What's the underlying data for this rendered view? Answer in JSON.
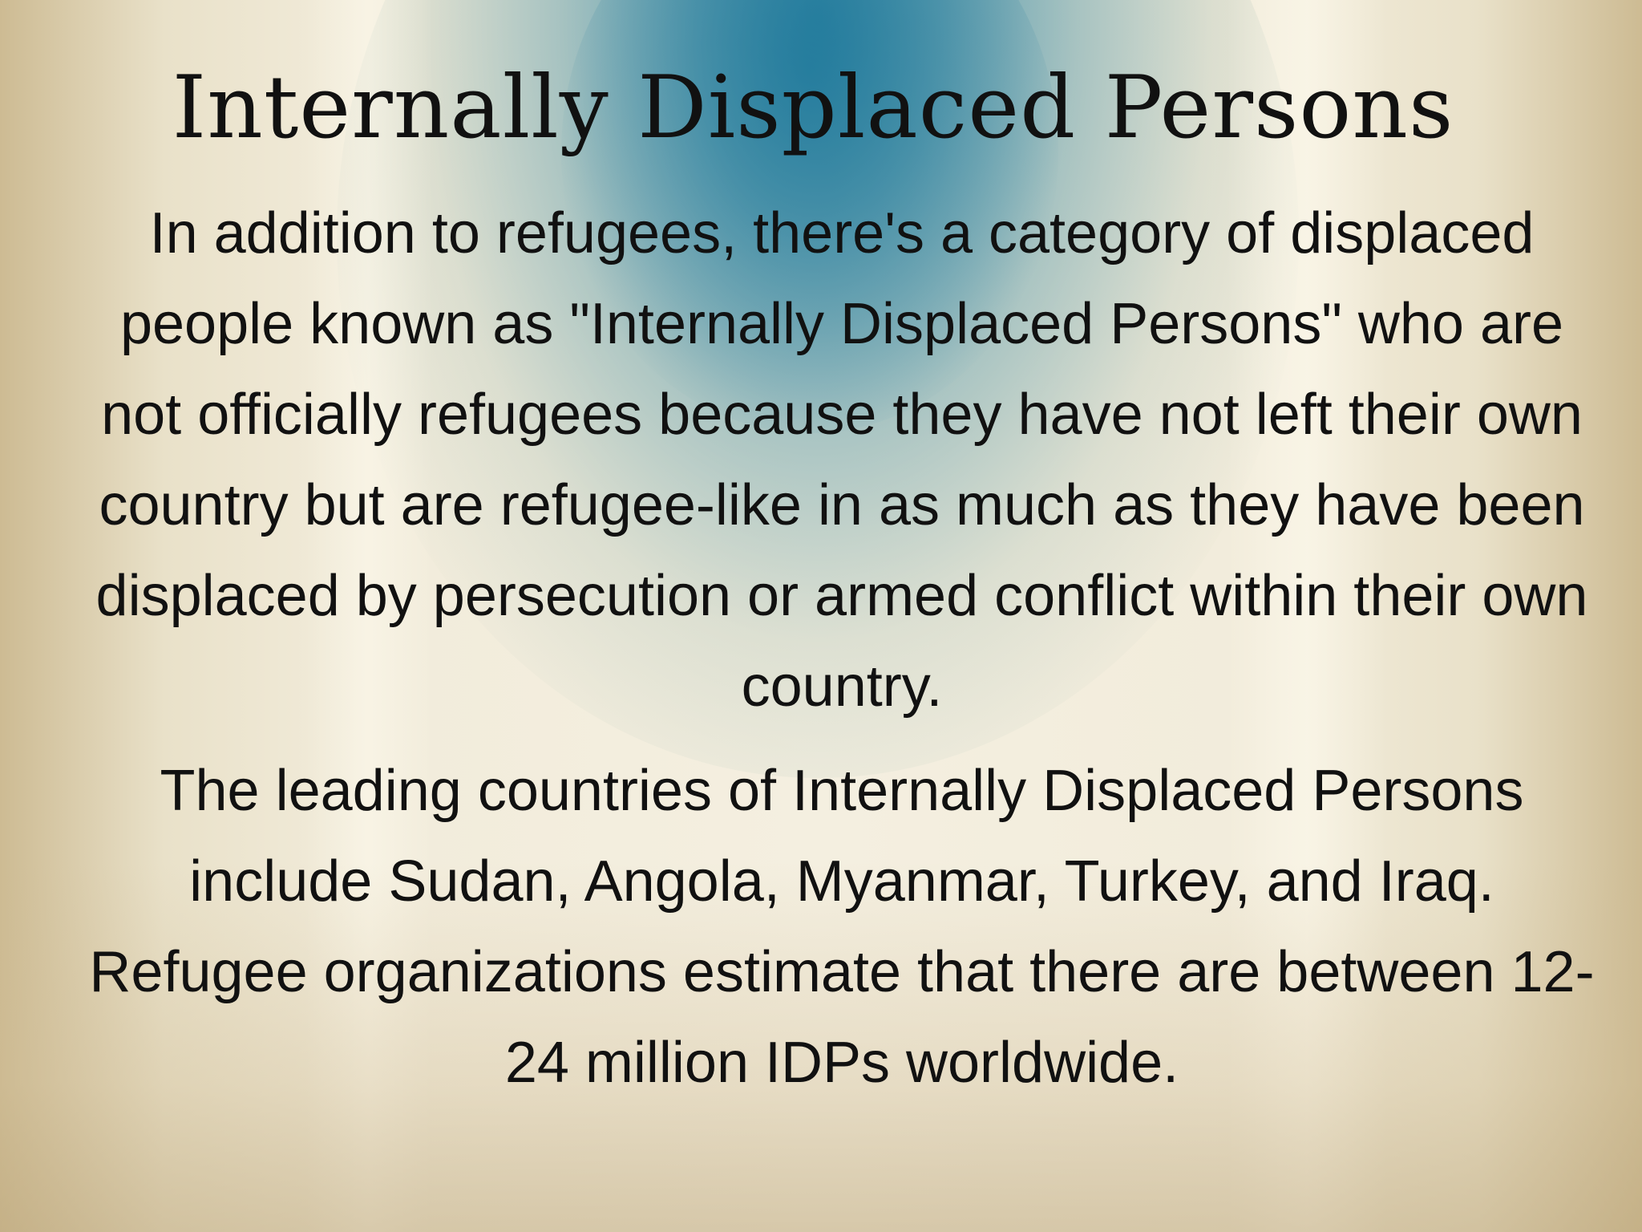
{
  "slide": {
    "title": "Internally Displaced Persons",
    "paragraph_1": "In addition to refugees, there's a category of displaced people known as \"Internally Displaced Persons\" who are not officially refugees because they have not left their own country but are refugee-like in as much as they have been displaced by persecution or armed conflict within their own country.",
    "paragraph_2": "The leading countries of Internally Displaced Persons include Sudan, Angola, Myanmar, Turkey, and Iraq. Refugee organizations estimate that there are between 12-24 million IDPs worldwide."
  },
  "colors": {
    "text": "#111111",
    "background_accent": "#2680a0",
    "background_base": "#f2ecdb"
  }
}
